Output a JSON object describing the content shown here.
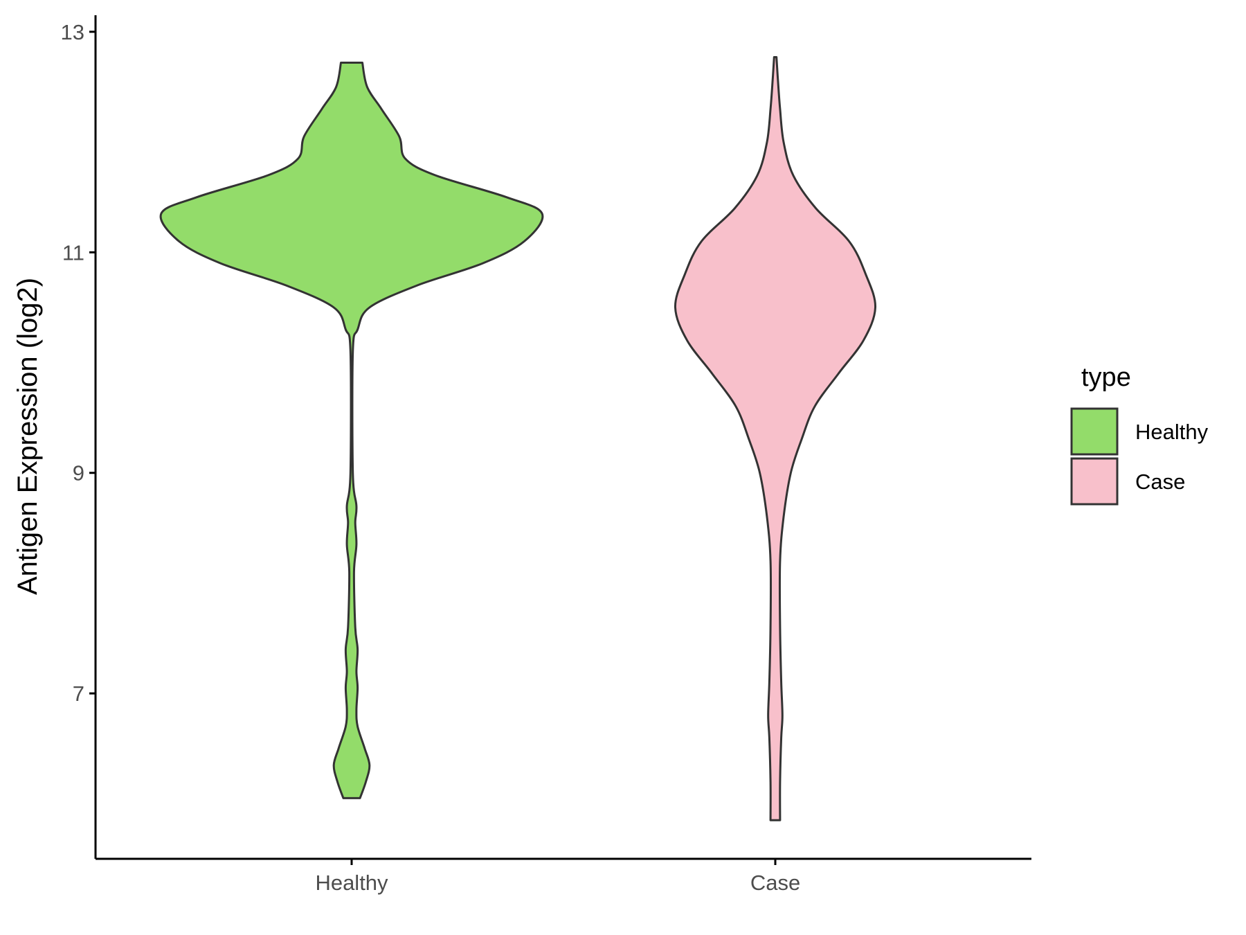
{
  "chart_data": {
    "type": "violin",
    "title": "",
    "xlabel": "",
    "ylabel": "Antigen Expression (log2)",
    "ylim": [
      5.5,
      13.15
    ],
    "yticks": [
      7,
      9,
      11,
      13
    ],
    "categories": [
      "Healthy",
      "Case"
    ],
    "grid": false,
    "legend": {
      "title": "type",
      "placement": "right",
      "entries": [
        {
          "label": "Healthy",
          "color": "#93dc6a"
        },
        {
          "label": "Case",
          "color": "#f8c0cb"
        }
      ]
    },
    "series": [
      {
        "category": "Healthy",
        "color": "#93dc6a",
        "y_range": [
          6.05,
          12.72
        ],
        "profile": [
          {
            "y": 6.05,
            "w": 0.07
          },
          {
            "y": 6.2,
            "w": 0.12
          },
          {
            "y": 6.35,
            "w": 0.15
          },
          {
            "y": 6.5,
            "w": 0.11
          },
          {
            "y": 6.7,
            "w": 0.05
          },
          {
            "y": 6.85,
            "w": 0.04
          },
          {
            "y": 7.05,
            "w": 0.05
          },
          {
            "y": 7.2,
            "w": 0.04
          },
          {
            "y": 7.4,
            "w": 0.05
          },
          {
            "y": 7.6,
            "w": 0.03
          },
          {
            "y": 8.1,
            "w": 0.02
          },
          {
            "y": 8.35,
            "w": 0.04
          },
          {
            "y": 8.55,
            "w": 0.03
          },
          {
            "y": 8.7,
            "w": 0.04
          },
          {
            "y": 9.0,
            "w": 0.01
          },
          {
            "y": 10.1,
            "w": 0.01
          },
          {
            "y": 10.3,
            "w": 0.05
          },
          {
            "y": 10.5,
            "w": 0.15
          },
          {
            "y": 10.7,
            "w": 0.55
          },
          {
            "y": 10.9,
            "w": 1.1
          },
          {
            "y": 11.1,
            "w": 1.45
          },
          {
            "y": 11.35,
            "w": 1.6
          },
          {
            "y": 11.5,
            "w": 1.3
          },
          {
            "y": 11.7,
            "w": 0.7
          },
          {
            "y": 11.85,
            "w": 0.45
          },
          {
            "y": 12.05,
            "w": 0.4
          },
          {
            "y": 12.3,
            "w": 0.25
          },
          {
            "y": 12.5,
            "w": 0.13
          },
          {
            "y": 12.72,
            "w": 0.09
          }
        ]
      },
      {
        "category": "Case",
        "color": "#f8c0cb",
        "y_range": [
          5.85,
          12.77
        ],
        "profile": [
          {
            "y": 5.85,
            "w": 0.04
          },
          {
            "y": 6.2,
            "w": 0.04
          },
          {
            "y": 6.6,
            "w": 0.05
          },
          {
            "y": 6.8,
            "w": 0.06
          },
          {
            "y": 7.1,
            "w": 0.05
          },
          {
            "y": 7.6,
            "w": 0.04
          },
          {
            "y": 8.2,
            "w": 0.04
          },
          {
            "y": 8.6,
            "w": 0.07
          },
          {
            "y": 9.0,
            "w": 0.13
          },
          {
            "y": 9.3,
            "w": 0.22
          },
          {
            "y": 9.6,
            "w": 0.33
          },
          {
            "y": 9.9,
            "w": 0.53
          },
          {
            "y": 10.2,
            "w": 0.74
          },
          {
            "y": 10.5,
            "w": 0.84
          },
          {
            "y": 10.8,
            "w": 0.76
          },
          {
            "y": 11.1,
            "w": 0.62
          },
          {
            "y": 11.4,
            "w": 0.34
          },
          {
            "y": 11.7,
            "w": 0.15
          },
          {
            "y": 12.0,
            "w": 0.07
          },
          {
            "y": 12.3,
            "w": 0.04
          },
          {
            "y": 12.6,
            "w": 0.02
          },
          {
            "y": 12.77,
            "w": 0.01
          }
        ]
      }
    ]
  }
}
